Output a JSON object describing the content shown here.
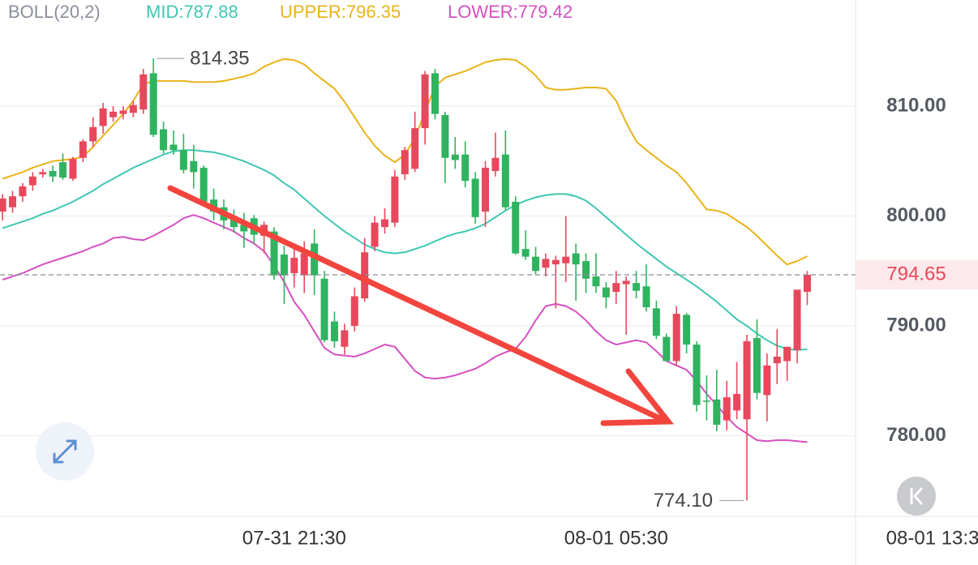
{
  "chart_data": {
    "type": "candlestick",
    "header": {
      "indicator": "BOLL(20,2)",
      "mid": "MID:787.88",
      "upper": "UPPER:796.35",
      "lower": "LOWER:779.42"
    },
    "up_color": "#e8485c",
    "down_color": "#2fb35f",
    "open": [
      800.4,
      800.8,
      801.8,
      802.8,
      803.8,
      804.1,
      804.9,
      803.4,
      805.3,
      806.8,
      808.2,
      809,
      809.3,
      809.4,
      809.7,
      813,
      807.9,
      806.5,
      806,
      805,
      804.4,
      801.5,
      800.8,
      800,
      799.2,
      799.8,
      798.2,
      798.6,
      796.5,
      794.8,
      794.6,
      797.5,
      794.3,
      790.4,
      788.1,
      790,
      792.5,
      797.2,
      799,
      799.4,
      803.8,
      804.3,
      808,
      813,
      809.2,
      805.6,
      805.6,
      803.4,
      800.4,
      804.1,
      805.6,
      801.3,
      797,
      796.3,
      795.3,
      795.6,
      795.7,
      796.6,
      795.9,
      794.5,
      793.5,
      793.1,
      793.8,
      793.9,
      793.6,
      791.6,
      789,
      786.8,
      791,
      788.3,
      783.2,
      783.3,
      781.4,
      782.3,
      781.5,
      788.9,
      783.7,
      786.6,
      786.8,
      787.8,
      793.1
    ],
    "high": [
      802,
      802.3,
      803,
      804,
      804.3,
      804.6,
      805.7,
      805.4,
      807,
      809,
      810.3,
      810,
      810,
      810.5,
      813.4,
      814.35,
      808.6,
      807.8,
      807.5,
      806.5,
      804.6,
      802.5,
      801.5,
      800.6,
      800.3,
      800.1,
      799.5,
      799,
      797.3,
      797.5,
      797.7,
      798.8,
      795,
      791.3,
      790.2,
      793.5,
      798,
      800,
      800.7,
      804.2,
      806.3,
      809.5,
      813.2,
      813.4,
      809.5,
      807.2,
      806.8,
      804,
      805,
      807.6,
      807.8,
      801.8,
      798.7,
      797.2,
      796.6,
      796.4,
      800,
      797.5,
      796.6,
      796.6,
      794,
      795,
      794.5,
      795,
      795.6,
      792.3,
      789.3,
      791.8,
      791.2,
      788.6,
      785.5,
      786,
      785,
      786.7,
      789.2,
      790.6,
      787.5,
      789.7,
      788,
      793.2,
      795
    ],
    "low": [
      799.6,
      800.3,
      801.3,
      802.3,
      803.5,
      803.1,
      803.3,
      803.2,
      804.9,
      806.3,
      807.5,
      808.6,
      808.8,
      809,
      809.3,
      807.2,
      805.7,
      805.6,
      803.9,
      802.5,
      800.9,
      799.6,
      798.8,
      798.5,
      797.1,
      797.5,
      796.6,
      794.2,
      792,
      793.5,
      793,
      792.8,
      788.5,
      788,
      787.4,
      789.5,
      792.2,
      796.8,
      798.4,
      799,
      803.3,
      804,
      806.5,
      808.8,
      803,
      804.3,
      802.6,
      799.3,
      799,
      803.6,
      800.5,
      796.5,
      796,
      794.7,
      794.5,
      791.6,
      794,
      792.3,
      793,
      793,
      791.6,
      792,
      789.2,
      792.5,
      791.3,
      788.8,
      786.8,
      786.4,
      787.5,
      782.2,
      781.4,
      780.4,
      780.5,
      781.5,
      774.1,
      783.3,
      781.3,
      784.7,
      785,
      786.6,
      791.9
    ],
    "close": [
      801.6,
      801.8,
      802.7,
      803.6,
      804,
      803.6,
      803.5,
      805.2,
      806.8,
      808.1,
      809.8,
      809.5,
      809.6,
      810.1,
      812.9,
      807.4,
      806,
      806,
      804.2,
      804,
      801.3,
      800.4,
      799.6,
      799,
      798.6,
      798.3,
      799.2,
      794.6,
      794.6,
      796.2,
      796.6,
      794.6,
      788.7,
      788.6,
      789.6,
      792.7,
      796.7,
      799.4,
      799.7,
      803.6,
      806,
      808,
      812.9,
      809.3,
      805.3,
      805.1,
      803.2,
      799.9,
      804.4,
      805.3,
      800.8,
      796.6,
      796.3,
      795,
      796.1,
      796,
      796.3,
      795.6,
      794.3,
      793.6,
      792.6,
      793.9,
      794.1,
      793.2,
      791.7,
      789.1,
      786.8,
      791.1,
      788.3,
      782.8,
      783.1,
      781,
      783.5,
      783.8,
      788.6,
      783.9,
      786.4,
      787.2,
      788.1,
      793.3,
      794.65
    ],
    "bands": [
      {
        "name": "MID",
        "color": "#3ec7b3",
        "values": [
          798.9,
          799.2,
          799.5,
          799.8,
          800.2,
          800.5,
          800.9,
          801.3,
          801.8,
          802.3,
          802.9,
          803.4,
          803.9,
          804.4,
          804.8,
          805.2,
          805.6,
          805.9,
          806,
          806,
          805.9,
          805.8,
          805.6,
          805.3,
          805,
          804.6,
          804.2,
          803.7,
          803,
          802.4,
          801.6,
          800.8,
          800,
          799.3,
          798.6,
          798,
          797.4,
          797,
          796.7,
          796.6,
          796.7,
          797,
          797.3,
          797.7,
          798.1,
          798.4,
          798.6,
          798.9,
          799.3,
          799.9,
          800.5,
          801,
          801.4,
          801.7,
          801.9,
          802,
          802,
          801.8,
          801.4,
          800.7,
          799.9,
          799.1,
          798.3,
          797.5,
          796.8,
          796.1,
          795.4,
          794.8,
          794.2,
          793.6,
          792.9,
          792.2,
          791.4,
          790.6,
          790,
          789.3,
          788.7,
          788.2,
          787.9,
          787.8,
          787.88
        ]
      },
      {
        "name": "UPPER",
        "color": "#e9b31a",
        "values": [
          803.4,
          803.7,
          804,
          804.4,
          804.7,
          805,
          805.1,
          805.2,
          805.4,
          806.3,
          807.3,
          808.3,
          809.3,
          810.5,
          812,
          812.3,
          812.3,
          812.3,
          812.3,
          812.2,
          812.2,
          812.2,
          812.3,
          812.5,
          812.7,
          813,
          813.6,
          814,
          814.3,
          814.2,
          813.8,
          813,
          812.3,
          811.6,
          810.4,
          809,
          807.6,
          806.4,
          805.5,
          804.9,
          805.6,
          807.1,
          809.5,
          811.8,
          812.6,
          812.9,
          813.2,
          813.6,
          814,
          814.2,
          814.3,
          814.2,
          813.6,
          812.8,
          811.7,
          811.5,
          811.5,
          811.6,
          811.7,
          811.7,
          811.6,
          810.5,
          808.5,
          806.8,
          806,
          805.3,
          804.6,
          804,
          803,
          801.8,
          800.6,
          800.5,
          800.2,
          799.6,
          799,
          798.2,
          797.3,
          796.4,
          795.6,
          795.9,
          796.35
        ]
      },
      {
        "name": "LOWER",
        "color": "#d550c2",
        "values": [
          794.2,
          794.5,
          794.8,
          795.2,
          795.6,
          795.9,
          796.2,
          796.5,
          796.8,
          797.2,
          797.5,
          798,
          798.1,
          797.9,
          797.8,
          798.2,
          798.7,
          799.2,
          799.8,
          800.1,
          799.8,
          799.4,
          799,
          798.6,
          798,
          797.5,
          796.8,
          795.5,
          794,
          792.2,
          791,
          789.5,
          788,
          787.4,
          787.3,
          787.2,
          787.5,
          787.9,
          788.3,
          788.1,
          787,
          785.9,
          785.3,
          785.2,
          785.3,
          785.5,
          785.8,
          786.1,
          786.6,
          787.2,
          787.6,
          787.9,
          789,
          790.5,
          791.8,
          792,
          791.8,
          791.3,
          790.5,
          789.5,
          788.7,
          788.3,
          788.5,
          788.7,
          788.5,
          787.7,
          786.8,
          786.4,
          786,
          785,
          783.8,
          782.8,
          781.7,
          780.8,
          780.2,
          779.6,
          779.5,
          779.6,
          779.6,
          779.5,
          779.42
        ]
      }
    ],
    "last_price": 794.65,
    "high_marker": 814.35,
    "low_marker": {
      "value": 774.1,
      "label": "774.10"
    },
    "xlim": [
      -0.25,
      84.8
    ],
    "xticks": [
      {
        "value": 29,
        "label": "07-31 21:30"
      },
      {
        "value": 61,
        "label": "08-01 05:30"
      },
      {
        "value": 93,
        "label": "08-01 13:30"
      }
    ],
    "ylim": [
      772.66,
      819.67
    ],
    "yticks": [
      {
        "value": 780,
        "label": "780.00"
      },
      {
        "value": 790,
        "label": "790.00"
      },
      {
        "value": 800,
        "label": "800.00"
      },
      {
        "value": 810,
        "label": "810.00"
      }
    ],
    "grid": true
  }
}
